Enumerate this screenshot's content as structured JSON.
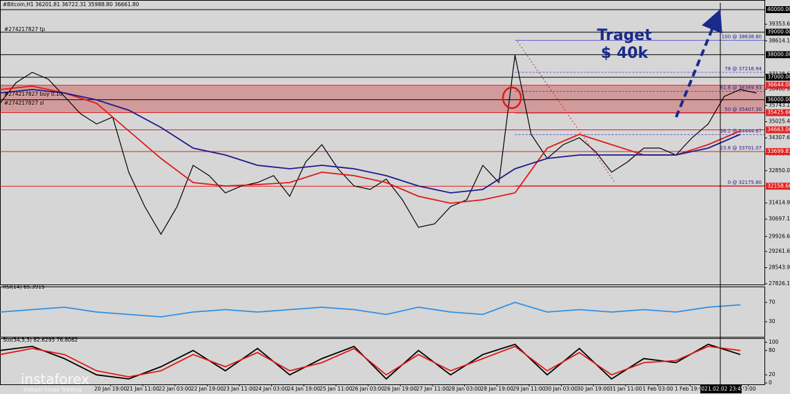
{
  "header": "#Bitcoin,H1  36201.81 36722.31 35988.80 36661.80",
  "annotation": [
    "Traget",
    "$ 40k"
  ],
  "order_labels": [
    "#274217827 tp",
    "#274217827 buy 0.10",
    "#274217827 sl"
  ],
  "cursor_label": "2021.02.02 23:45",
  "watermark": [
    "instaforex",
    "Instant Forex Trading"
  ],
  "chart_data": [
    {
      "type": "line",
      "xlim": [
        0,
        380
      ],
      "xticks": [
        {
          "value": 55,
          "label": "20 Jan 19:00"
        },
        {
          "value": 71,
          "label": "21 Jan 11:00"
        },
        {
          "value": 87,
          "label": "22 Jan 03:00"
        },
        {
          "value": 103,
          "label": "22 Jan 19:00"
        },
        {
          "value": 119,
          "label": "23 Jan 11:00"
        },
        {
          "value": 135,
          "label": "24 Jan 03:00"
        },
        {
          "value": 151,
          "label": "24 Jan 19:00"
        },
        {
          "value": 167,
          "label": "25 Jan 11:00"
        },
        {
          "value": 183,
          "label": "26 Jan 03:00"
        },
        {
          "value": 199,
          "label": "26 Jan 19:00"
        },
        {
          "value": 215,
          "label": "27 Jan 11:00"
        },
        {
          "value": 231,
          "label": "28 Jan 03:00"
        },
        {
          "value": 247,
          "label": "28 Jan 19:00"
        },
        {
          "value": 263,
          "label": "29 Jan 11:00"
        },
        {
          "value": 279,
          "label": "30 Jan 03:00"
        },
        {
          "value": 295,
          "label": "30 Jan 19:00"
        },
        {
          "value": 311,
          "label": "31 Jan 11:00"
        },
        {
          "value": 327,
          "label": "1 Feb 03:00"
        },
        {
          "value": 343,
          "label": "1 Feb 19:00"
        },
        {
          "value": 372,
          "label": "03:00"
        }
      ],
      "ylim": [
        27826.15,
        40000
      ],
      "yticks": [
        {
          "value": 39353.65,
          "label": "39353.65"
        },
        {
          "value": 38614.15,
          "label": "38614.15"
        },
        {
          "value": 37128.65,
          "label": "37128.65"
        },
        {
          "value": 36460.9,
          "label": "36460.90"
        },
        {
          "value": 35743.15,
          "label": "35743.15"
        },
        {
          "value": 35025.4,
          "label": "35025.40"
        },
        {
          "value": 34307.65,
          "label": "34307.65"
        },
        {
          "value": 33589.9,
          "label": "33589.90"
        },
        {
          "value": 32850,
          "label": "32850.00"
        },
        {
          "value": 31414.9,
          "label": "31414.90"
        },
        {
          "value": 30697.15,
          "label": "30697.15"
        },
        {
          "value": 29926.65,
          "label": "29926.65"
        },
        {
          "value": 29261.65,
          "label": "29261.65"
        },
        {
          "value": 28543.9,
          "label": "28543.90"
        },
        {
          "value": 27826.15,
          "label": "27826.15"
        }
      ],
      "levels": [
        {
          "value": 40000,
          "label": "40000.00",
          "color": "#000000"
        },
        {
          "value": 39000,
          "label": "39000.00",
          "color": "#000000"
        },
        {
          "value": 38000,
          "label": "38000.00",
          "color": "#000000"
        },
        {
          "value": 37000,
          "label": "37000.00",
          "color": "#000000"
        },
        {
          "value": 36000,
          "label": "36000.00",
          "color": "#000000"
        },
        {
          "value": 36644,
          "label": "36644.00",
          "color": "#e02020"
        },
        {
          "value": 35425.66,
          "label": "35425.66",
          "color": "#e02020"
        },
        {
          "value": 34663.06,
          "label": "34663.06",
          "color": "#e02020"
        },
        {
          "value": 33699.83,
          "label": "33699.83",
          "color": "#e02020"
        },
        {
          "value": 32158.66,
          "label": "32158.66",
          "color": "#e02020"
        }
      ],
      "fib": [
        {
          "value": 38638.8,
          "label": "100 @ 38638.80"
        },
        {
          "value": 37216.94,
          "label": "78 @ 37216.94"
        },
        {
          "value": 36369.93,
          "label": "61.8 @ 36369.93"
        },
        {
          "value": 35407.3,
          "label": "50 @ 35407.30"
        },
        {
          "value": 34444.67,
          "label": "38.2 @ 34444.67"
        },
        {
          "value": 33701.07,
          "label": "23.6 @ 33701.07"
        },
        {
          "value": 32175.8,
          "label": "0 @ 32175.80"
        }
      ],
      "series": [
        {
          "color": "#000000",
          "x": [
            0,
            8,
            16,
            24,
            32,
            40,
            48,
            56,
            64,
            72,
            80,
            88,
            96,
            104,
            112,
            120,
            128,
            136,
            144,
            152,
            160,
            168,
            176,
            184,
            192,
            200,
            208,
            216,
            224,
            232,
            240,
            248,
            256,
            264,
            272,
            280,
            288,
            296,
            304,
            312,
            320,
            328,
            336,
            344,
            352,
            360,
            368,
            376
          ],
          "values": [
            35840,
            36757,
            37216,
            36910,
            36146,
            35381,
            34922,
            35228,
            32781,
            31251,
            30028,
            31251,
            33087,
            32628,
            31863,
            32169,
            32322,
            32628,
            31710,
            33240,
            34004,
            32934,
            32169,
            32016,
            32475,
            31557,
            30334,
            30487,
            31251,
            31557,
            33087,
            32322,
            37981,
            34463,
            33393,
            34004,
            34310,
            33699,
            32781,
            33240,
            33851,
            33851,
            33546,
            34310,
            34922,
            36146,
            36452,
            36299
          ]
        },
        {
          "color": "#e01818",
          "x": [
            0,
            16,
            32,
            48,
            64,
            80,
            96,
            112,
            128,
            144,
            160,
            176,
            192,
            208,
            224,
            240,
            256,
            272,
            288,
            304,
            320,
            336,
            352,
            368
          ],
          "values": [
            36451,
            36604,
            36299,
            35840,
            34616,
            33392,
            32322,
            32169,
            32230,
            32322,
            32781,
            32628,
            32322,
            31710,
            31404,
            31557,
            31863,
            33851,
            34463,
            34004,
            33545,
            33545,
            34004,
            34616
          ]
        },
        {
          "color": "#1a1a8c",
          "x": [
            0,
            16,
            32,
            48,
            64,
            80,
            96,
            112,
            128,
            144,
            160,
            176,
            192,
            208,
            224,
            240,
            256,
            272,
            288,
            304,
            320,
            336,
            352,
            368
          ],
          "values": [
            36299,
            36451,
            36299,
            35993,
            35534,
            34769,
            33851,
            33545,
            33086,
            32934,
            33086,
            32934,
            32628,
            32169,
            31863,
            32016,
            32934,
            33392,
            33545,
            33545,
            33545,
            33545,
            33851,
            34463
          ]
        }
      ]
    },
    {
      "type": "line",
      "title": "RSI(14) 65.3915",
      "ylim": [
        0,
        100
      ],
      "yticks": [
        70,
        30
      ],
      "series": [
        {
          "color": "#2f8fe6",
          "x": [
            0,
            16,
            32,
            48,
            64,
            80,
            96,
            112,
            128,
            144,
            160,
            176,
            192,
            208,
            224,
            240,
            256,
            272,
            288,
            304,
            320,
            336,
            352,
            368
          ],
          "values": [
            50,
            55,
            60,
            50,
            45,
            40,
            50,
            55,
            50,
            55,
            60,
            55,
            45,
            60,
            50,
            45,
            70,
            50,
            55,
            50,
            55,
            50,
            60,
            65
          ]
        }
      ]
    },
    {
      "type": "line",
      "title": "Sto(34,5,3) 82.6295 76.8062",
      "ylim": [
        0,
        100
      ],
      "yticks": [
        100,
        80,
        20,
        0
      ],
      "series": [
        {
          "color": "#000000",
          "x": [
            0,
            16,
            32,
            48,
            64,
            80,
            96,
            112,
            128,
            144,
            160,
            176,
            192,
            208,
            224,
            240,
            256,
            272,
            288,
            304,
            320,
            336,
            352,
            368
          ],
          "values": [
            80,
            90,
            60,
            20,
            10,
            40,
            80,
            30,
            85,
            20,
            60,
            90,
            10,
            80,
            20,
            70,
            95,
            20,
            85,
            10,
            60,
            50,
            95,
            70
          ]
        },
        {
          "color": "#e01818",
          "x": [
            0,
            16,
            32,
            48,
            64,
            80,
            96,
            112,
            128,
            144,
            160,
            176,
            192,
            208,
            224,
            240,
            256,
            272,
            288,
            304,
            320,
            336,
            352,
            368
          ],
          "values": [
            70,
            85,
            70,
            30,
            15,
            30,
            70,
            40,
            75,
            30,
            50,
            85,
            20,
            70,
            30,
            60,
            90,
            30,
            75,
            20,
            50,
            55,
            90,
            80
          ]
        }
      ]
    }
  ]
}
